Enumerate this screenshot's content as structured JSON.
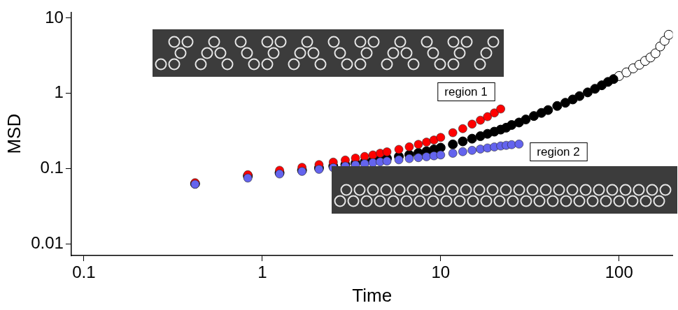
{
  "chart_data": {
    "type": "scatter",
    "x_label": "Time",
    "y_label": "MSD",
    "x": [
      0.42,
      0.83,
      1.25,
      1.67,
      2.08,
      2.5,
      2.92,
      3.33,
      3.75,
      4.17,
      4.58,
      5,
      5.83,
      6.67,
      7.5,
      8.33,
      9.17,
      10,
      11.7,
      13.3,
      15,
      16.7,
      18.3,
      20,
      21.7,
      23.3,
      25,
      27.5,
      30,
      33.3,
      36.7,
      40,
      45,
      50,
      55,
      60,
      66.7,
      73.3,
      80,
      86.7,
      93.3,
      100,
      110,
      120,
      130,
      140,
      150,
      160,
      170,
      180,
      190
    ],
    "series": [
      {
        "color": "#000000",
        "marker": "open_circle",
        "values": [
          0.063,
          0.08,
          0.088,
          0.095,
          0.102,
          0.108,
          0.113,
          0.118,
          0.123,
          0.128,
          0.132,
          0.137,
          0.145,
          0.153,
          0.162,
          0.17,
          0.18,
          0.19,
          0.21,
          0.23,
          0.25,
          0.27,
          0.29,
          0.31,
          0.33,
          0.35,
          0.38,
          0.41,
          0.45,
          0.5,
          0.55,
          0.6,
          0.68,
          0.75,
          0.83,
          0.92,
          1.03,
          1.15,
          1.28,
          1.42,
          1.55,
          1.7,
          1.9,
          2.15,
          2.4,
          2.7,
          3.0,
          3.4,
          4.2,
          5.0,
          6.0
        ]
      },
      {
        "color": "#000000",
        "marker": "circle",
        "values": [
          0.063,
          0.08,
          0.088,
          0.095,
          0.102,
          0.108,
          0.113,
          0.118,
          0.123,
          0.128,
          0.132,
          0.137,
          0.145,
          0.153,
          0.162,
          0.17,
          0.18,
          0.19,
          0.21,
          0.23,
          0.25,
          0.27,
          0.29,
          0.31,
          0.33,
          0.35,
          0.38,
          0.41,
          0.45,
          0.5,
          0.55,
          0.6,
          0.68,
          0.75,
          0.83,
          0.92,
          1.03,
          1.15,
          1.28,
          1.42,
          1.55,
          null,
          null,
          null,
          null,
          null,
          null,
          null,
          null,
          null,
          null
        ]
      },
      {
        "color": "#ff0000",
        "marker": "circle",
        "values": [
          0.065,
          0.083,
          0.095,
          0.104,
          0.113,
          0.122,
          0.13,
          0.138,
          0.145,
          0.152,
          0.16,
          0.167,
          0.18,
          0.195,
          0.21,
          0.225,
          0.24,
          0.26,
          0.3,
          0.34,
          0.39,
          0.44,
          0.49,
          0.55,
          0.62,
          null,
          null,
          null,
          null,
          null,
          null,
          null,
          null,
          null,
          null,
          null,
          null,
          null,
          null,
          null,
          null,
          null,
          null,
          null,
          null,
          null,
          null,
          null,
          null,
          null,
          null
        ]
      },
      {
        "color": "#6464ee",
        "marker": "circle",
        "values": [
          0.062,
          0.075,
          0.085,
          0.092,
          0.098,
          0.103,
          0.108,
          0.112,
          0.116,
          0.12,
          0.123,
          0.126,
          0.131,
          0.136,
          0.14,
          0.144,
          0.148,
          0.152,
          0.16,
          0.168,
          0.175,
          0.182,
          0.188,
          0.194,
          0.2,
          0.204,
          0.208,
          0.212,
          null,
          null,
          null,
          null,
          null,
          null,
          null,
          null,
          null,
          null,
          null,
          null,
          null,
          null,
          null,
          null,
          null,
          null,
          null,
          null,
          null,
          null,
          null
        ]
      }
    ],
    "xlim": [
      0.085,
      200
    ],
    "ylim": [
      0.007,
      12
    ],
    "xticks": [
      0.1,
      1,
      10,
      100
    ],
    "yticks": [
      0.01,
      0.1,
      1,
      10
    ],
    "log": true,
    "grid": false,
    "annotations": [
      "region 1",
      "region 2"
    ]
  }
}
